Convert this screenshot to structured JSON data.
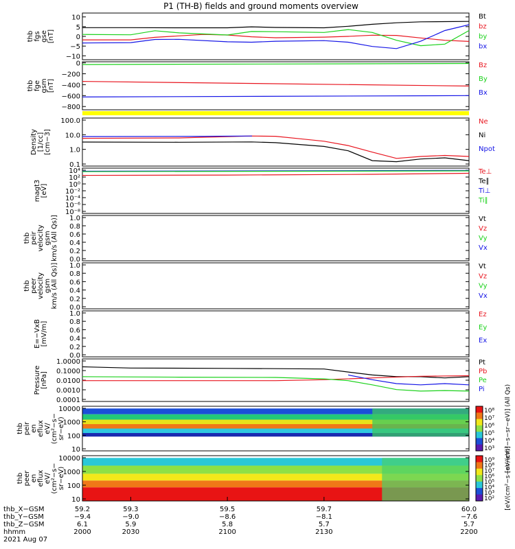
{
  "title": "P1 (TH-B) fields and ground moments overview",
  "colors": {
    "black": "#000000",
    "red": "#e8141e",
    "green": "#1ad11a",
    "blue": "#1414e6",
    "yellow": "#ffff00",
    "frame": "#000000"
  },
  "panels": [
    {
      "id": "fgs-gse",
      "ylabel": [
        "thb",
        "fgs",
        "gse",
        "[nT]"
      ],
      "ticks": [
        "10",
        "5",
        "0",
        "−5",
        "−10"
      ],
      "legend": [
        {
          "text": "Bt",
          "color": "#000000"
        },
        {
          "text": "bz",
          "color": "#e8141e"
        },
        {
          "text": "by",
          "color": "#1ad11a"
        },
        {
          "text": "bx",
          "color": "#1414e6"
        }
      ],
      "y_range": [
        -12,
        12
      ],
      "series": [
        {
          "name": "Bt",
          "color": "#000000",
          "t": [
            59.2,
            59.3,
            59.4,
            59.5,
            59.55,
            59.6,
            59.7,
            59.75,
            59.8,
            59.85,
            59.9,
            59.95,
            60.0
          ],
          "v": [
            4.5,
            4.5,
            4.4,
            4.4,
            4.9,
            4.6,
            4.4,
            5.2,
            6.2,
            7.0,
            7.5,
            7.6,
            7.7
          ]
        },
        {
          "name": "bz",
          "color": "#e8141e",
          "t": [
            59.2,
            59.3,
            59.35,
            59.45,
            59.5,
            59.55,
            59.6,
            59.7,
            59.75,
            59.8,
            59.85,
            59.9,
            59.95,
            60.0
          ],
          "v": [
            -1.8,
            -1.8,
            -0.5,
            1.0,
            0.7,
            -0.2,
            -0.7,
            -0.4,
            0.0,
            0.6,
            0.5,
            -0.8,
            -2.0,
            -2.6
          ]
        },
        {
          "name": "by",
          "color": "#1ad11a",
          "t": [
            59.2,
            59.3,
            59.35,
            59.4,
            59.5,
            59.55,
            59.6,
            59.7,
            59.75,
            59.8,
            59.85,
            59.9,
            59.95,
            60.0
          ],
          "v": [
            1.0,
            0.8,
            2.9,
            1.8,
            0.7,
            2.5,
            2.4,
            2.0,
            3.5,
            2.0,
            -2.0,
            -4.8,
            -4.0,
            3.0
          ]
        },
        {
          "name": "bx",
          "color": "#1414e6",
          "t": [
            59.2,
            59.3,
            59.35,
            59.4,
            59.5,
            59.55,
            59.6,
            59.7,
            59.75,
            59.8,
            59.85,
            59.9,
            59.95,
            60.0
          ],
          "v": [
            -3.4,
            -3.2,
            -1.6,
            -1.5,
            -2.8,
            -3.0,
            -2.5,
            -2.2,
            -3.0,
            -5.2,
            -6.3,
            -2.5,
            3.0,
            6.0
          ]
        }
      ]
    },
    {
      "id": "fge-gsm",
      "ylabel": [
        "thb",
        "fge",
        "gsm",
        "[nT]"
      ],
      "ticks": [
        "0",
        "−200",
        "−400",
        "−600",
        "−800"
      ],
      "legend": [
        {
          "text": "Bz",
          "color": "#e8141e"
        },
        {
          "text": "By",
          "color": "#1ad11a"
        },
        {
          "text": "Bx",
          "color": "#1414e6"
        }
      ],
      "y_range": [
        -860,
        20
      ],
      "series": [
        {
          "name": "Bz",
          "color": "#e8141e",
          "t": [
            59.2,
            60.0
          ],
          "v": [
            -340,
            -425
          ]
        },
        {
          "name": "By",
          "color": "#1ad11a",
          "t": [
            59.2,
            60.0
          ],
          "v": [
            -30,
            -12
          ]
        },
        {
          "name": "Bx",
          "color": "#1414e6",
          "t": [
            59.2,
            60.0
          ],
          "v": [
            -625,
            -600
          ]
        }
      ]
    },
    {
      "id": "density",
      "ylabel": [
        "Density",
        "[1/cc]",
        "[cm−3]"
      ],
      "ticks": [
        "100.0",
        "10.0",
        "1.0",
        "0.1"
      ],
      "legend": [
        {
          "text": "Ne",
          "color": "#e8141e"
        },
        {
          "text": "Ni",
          "color": "#000000"
        },
        {
          "text": "Npot",
          "color": "#1414e6"
        }
      ],
      "y_range_log10": [
        -1.8,
        2.6
      ],
      "series": [
        {
          "name": "Ne",
          "color": "#e8141e",
          "t": [
            59.2,
            59.4,
            59.55,
            59.6,
            59.65,
            59.7,
            59.75,
            59.8,
            59.85,
            59.9,
            59.95,
            60.0
          ],
          "v": [
            5.5,
            6.0,
            9.0,
            8.5,
            5.0,
            3.0,
            1.2,
            0.3,
            0.08,
            0.12,
            0.15,
            0.12
          ]
        },
        {
          "name": "Ni",
          "color": "#000000",
          "t": [
            59.2,
            59.4,
            59.55,
            59.6,
            59.65,
            59.7,
            59.75,
            59.8,
            59.85,
            59.9,
            59.95,
            60.0
          ],
          "v": [
            2.5,
            2.4,
            2.6,
            2.2,
            1.5,
            1.0,
            0.4,
            0.05,
            0.04,
            0.07,
            0.09,
            0.05
          ]
        },
        {
          "name": "Npot",
          "color": "#1414e6",
          "t": [
            59.2,
            59.45,
            59.55,
            59.551
          ],
          "v": [
            8.0,
            8.5,
            9.0,
            9.0
          ]
        }
      ]
    },
    {
      "id": "temperature",
      "ylabel": [
        "magt3",
        "[eV]"
      ],
      "ticks": [
        "10⁴",
        "10²",
        "10⁰",
        "10⁻²",
        "10⁻⁴",
        "10⁻⁶",
        "10⁻⁸"
      ],
      "legend": [
        {
          "text": "Te⊥",
          "color": "#e8141e"
        },
        {
          "text": "Te∥",
          "color": "#000000"
        },
        {
          "text": "Ti⊥",
          "color": "#1414e6"
        },
        {
          "text": "Ti∥",
          "color": "#1ad11a"
        }
      ],
      "y_range_log10": [
        -9,
        4.2
      ],
      "series": [
        {
          "name": "Te⊥",
          "color": "#e8141e",
          "t": [
            59.2,
            59.5,
            59.8,
            60.0
          ],
          "v": [
            120,
            150,
            250,
            500
          ]
        },
        {
          "name": "Ti⊥",
          "color": "#1414e6",
          "t": [
            59.2,
            60.0
          ],
          "v": [
            2000,
            3500
          ]
        },
        {
          "name": "Ti∥",
          "color": "#1ad11a",
          "t": [
            59.2,
            60.0
          ],
          "v": [
            1500,
            2500
          ]
        }
      ]
    },
    {
      "id": "peir-velocity",
      "ylabel": [
        "thb",
        "peir",
        "velocity",
        "gsm",
        "km/s (All Qs)]"
      ],
      "ticks": [
        "1.0",
        "0.8",
        "0.6",
        "0.4",
        "0.2",
        "0.0"
      ],
      "legend": [
        {
          "text": "Vt",
          "color": "#000000"
        },
        {
          "text": "Vz",
          "color": "#e8141e"
        },
        {
          "text": "Vy",
          "color": "#1ad11a"
        },
        {
          "text": "Vx",
          "color": "#1414e6"
        }
      ]
    },
    {
      "id": "peer-velocity",
      "ylabel": [
        "thb",
        "peer",
        "velocity",
        "gsm",
        "km/s (All Qs)]"
      ],
      "ticks": [
        "1.0",
        "0.8",
        "0.6",
        "0.4",
        "0.2",
        "0.0"
      ],
      "legend": [
        {
          "text": "Vt",
          "color": "#000000"
        },
        {
          "text": "Vz",
          "color": "#e8141e"
        },
        {
          "text": "Vy",
          "color": "#1ad11a"
        },
        {
          "text": "Vx",
          "color": "#1414e6"
        }
      ]
    },
    {
      "id": "efield",
      "ylabel": [
        "E=−VxB",
        "[mV/m]"
      ],
      "ticks": [
        "1.0",
        "0.8",
        "0.6",
        "0.4",
        "0.2",
        "0.0"
      ],
      "legend": [
        {
          "text": "Ez",
          "color": "#e8141e"
        },
        {
          "text": "Ey",
          "color": "#1ad11a"
        },
        {
          "text": "Ex",
          "color": "#1414e6"
        }
      ]
    },
    {
      "id": "pressure",
      "ylabel": [
        "Pressure",
        "[nPa]"
      ],
      "ticks": [
        "1.0000",
        "0.1000",
        "0.0100",
        "0.0010",
        "0.0001"
      ],
      "legend": [
        {
          "text": "Pt",
          "color": "#000000"
        },
        {
          "text": "Pb",
          "color": "#e8141e"
        },
        {
          "text": "Pe",
          "color": "#1ad11a"
        },
        {
          "text": "Pi",
          "color": "#1414e6"
        }
      ],
      "y_range_log10": [
        -4.2,
        0.1
      ],
      "series": [
        {
          "name": "Pt",
          "color": "#000000",
          "t": [
            59.2,
            59.3,
            59.5,
            59.6,
            59.7,
            59.75,
            59.8,
            59.85,
            59.9,
            59.95,
            60.0
          ],
          "v": [
            0.2,
            0.15,
            0.14,
            0.13,
            0.12,
            0.06,
            0.03,
            0.02,
            0.02,
            0.015,
            0.02
          ]
        },
        {
          "name": "Pb",
          "color": "#e8141e",
          "t": [
            59.2,
            59.4,
            59.6,
            59.7,
            59.8,
            59.9,
            60.0
          ],
          "v": [
            0.008,
            0.008,
            0.008,
            0.01,
            0.015,
            0.022,
            0.025
          ]
        },
        {
          "name": "Pe",
          "color": "#1ad11a",
          "t": [
            59.2,
            59.4,
            59.6,
            59.7,
            59.75,
            59.8,
            59.85,
            59.9,
            59.95,
            60.0
          ],
          "v": [
            0.02,
            0.018,
            0.017,
            0.012,
            0.008,
            0.003,
            0.001,
            0.0007,
            0.0008,
            0.0007
          ]
        },
        {
          "name": "Pi",
          "color": "#1414e6",
          "t": [
            59.75,
            59.8,
            59.85,
            59.9,
            59.95,
            60.0
          ],
          "v": [
            0.03,
            0.01,
            0.004,
            0.003,
            0.004,
            0.003
          ]
        }
      ]
    },
    {
      "id": "peir-spectrogram",
      "ylabel": [
        "thb",
        "peir",
        "en",
        "eflux",
        "eV/",
        "(cm²−s−",
        "sr−eV)"
      ],
      "ticks": [
        "10000",
        "1000",
        "100",
        "10"
      ],
      "cbar_ticks": [
        "10⁸",
        "10⁷",
        "10⁶",
        "10⁵",
        "10⁴",
        "10³"
      ],
      "cbar_label": "[eV/(cm²−s−sr−eV)] (All Qs)"
    },
    {
      "id": "peer-spectrogram",
      "ylabel": [
        "thb",
        "peer",
        "en",
        "eflux",
        "eV/",
        "(cm²−s−",
        "sr−eV)"
      ],
      "ticks": [
        "10000",
        "1000",
        "100",
        "10"
      ],
      "cbar_ticks": [
        "10⁹",
        "10⁸",
        "10⁷",
        "10⁶",
        "10⁵",
        "10⁴",
        "10³",
        "10²"
      ],
      "cbar_label": "[eV/(cm²−s−sr−eV)]"
    }
  ],
  "xaxis": {
    "row_labels": [
      "thb_X−GSM",
      "thb_Y−GSM",
      "thb_Z−GSM",
      "hhmm",
      "2021 Aug 07"
    ],
    "columns": [
      {
        "t": 59.2,
        "vals": [
          "59.2",
          "−9.4",
          "6.1",
          "2000"
        ]
      },
      {
        "t": 59.3,
        "vals": [
          "59.3",
          "−9.0",
          "5.9",
          "2030"
        ]
      },
      {
        "t": 59.5,
        "vals": [
          "59.5",
          "−8.6",
          "5.8",
          "2100"
        ]
      },
      {
        "t": 59.7,
        "vals": [
          "59.7",
          "−8.1",
          "5.7",
          "2130"
        ]
      },
      {
        "t": 60.0,
        "vals": [
          "60.0",
          "−7.6",
          "5.7",
          "2200"
        ]
      }
    ]
  },
  "bottom_cbar_label": "[eV/(cm²−s−sr−eV)]"
}
